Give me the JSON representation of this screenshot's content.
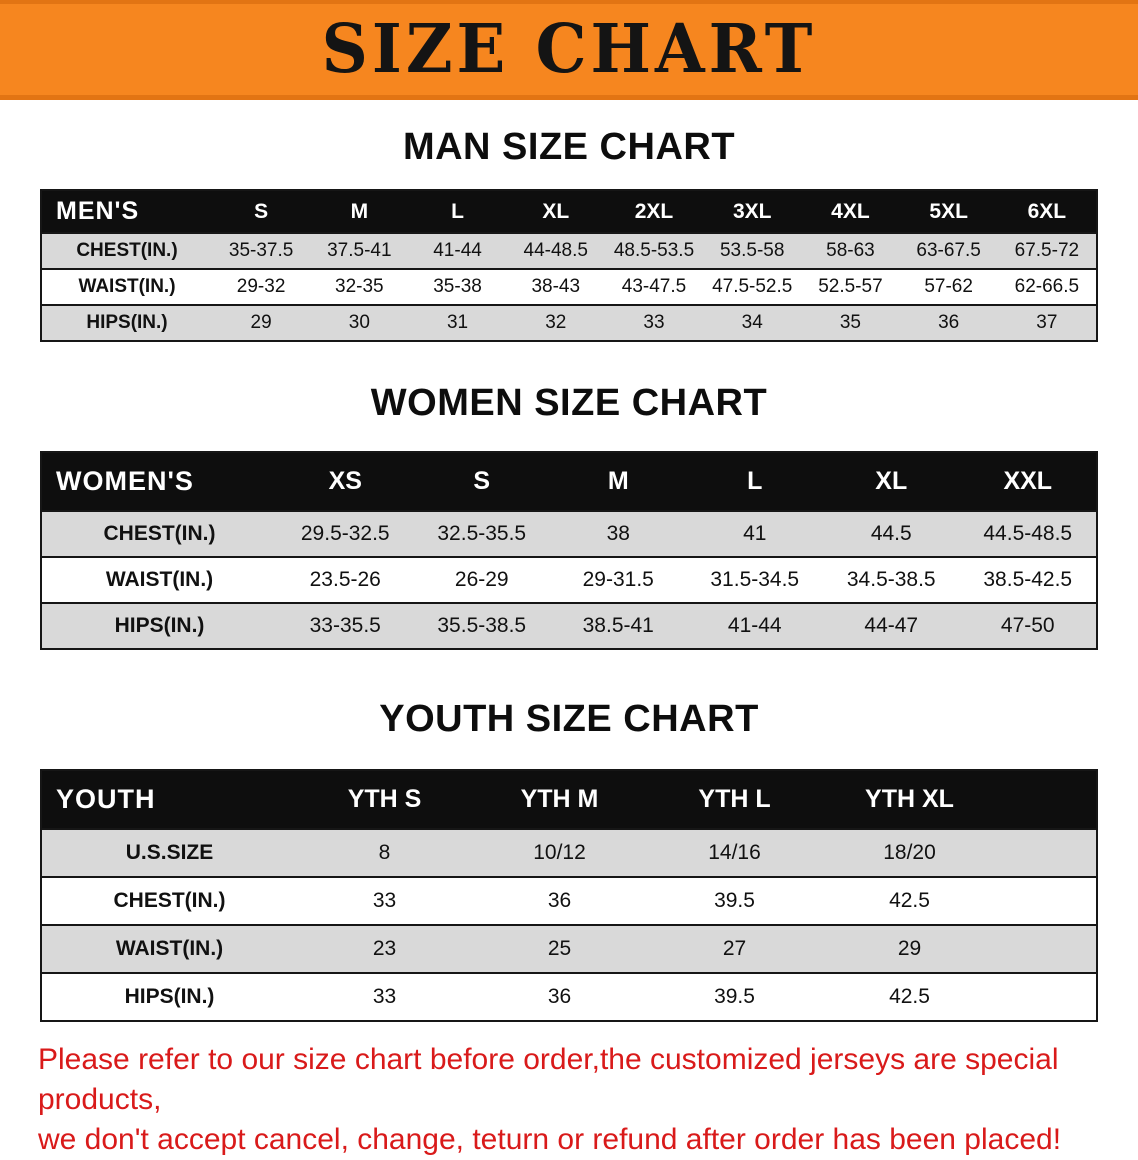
{
  "banner": {
    "title": "SIZE CHART",
    "bg_color": "#f6861f",
    "text_color": "#141414"
  },
  "colors": {
    "stripe_gray": "#d9d9d9",
    "header_black": "#0e0e0e",
    "footer_red": "#d91a1a"
  },
  "sections": [
    {
      "heading": "MAN SIZE CHART",
      "table": {
        "header": [
          "MEN'S",
          "S",
          "M",
          "L",
          "XL",
          "2XL",
          "3XL",
          "4XL",
          "5XL",
          "6XL"
        ],
        "rows": [
          {
            "label": "CHEST(IN.)",
            "values": [
              "35-37.5",
              "37.5-41",
              "41-44",
              "44-48.5",
              "48.5-53.5",
              "53.5-58",
              "58-63",
              "63-67.5",
              "67.5-72"
            ]
          },
          {
            "label": "WAIST(IN.)",
            "values": [
              "29-32",
              "32-35",
              "35-38",
              "38-43",
              "43-47.5",
              "47.5-52.5",
              "52.5-57",
              "57-62",
              "62-66.5"
            ]
          },
          {
            "label": "HIPS(IN.)",
            "values": [
              "29",
              "30",
              "31",
              "32",
              "33",
              "34",
              "35",
              "36",
              "37"
            ]
          }
        ]
      }
    },
    {
      "heading": "WOMEN SIZE CHART",
      "table": {
        "header": [
          "WOMEN'S",
          "XS",
          "S",
          "M",
          "L",
          "XL",
          "XXL"
        ],
        "rows": [
          {
            "label": "CHEST(IN.)",
            "values": [
              "29.5-32.5",
              "32.5-35.5",
              "38",
              "41",
              "44.5",
              "44.5-48.5"
            ]
          },
          {
            "label": "WAIST(IN.)",
            "values": [
              "23.5-26",
              "26-29",
              "29-31.5",
              "31.5-34.5",
              "34.5-38.5",
              "38.5-42.5"
            ]
          },
          {
            "label": "HIPS(IN.)",
            "values": [
              "33-35.5",
              "35.5-38.5",
              "38.5-41",
              "41-44",
              "44-47",
              "47-50"
            ]
          }
        ]
      }
    },
    {
      "heading": "YOUTH SIZE CHART",
      "table": {
        "header": [
          "YOUTH",
          "YTH S",
          "YTH M",
          "YTH L",
          "YTH XL"
        ],
        "rows": [
          {
            "label": "U.S.SIZE",
            "values": [
              "8",
              "10/12",
              "14/16",
              "18/20"
            ]
          },
          {
            "label": "CHEST(IN.)",
            "values": [
              "33",
              "36",
              "39.5",
              "42.5"
            ]
          },
          {
            "label": "WAIST(IN.)",
            "values": [
              "23",
              "25",
              "27",
              "29"
            ]
          },
          {
            "label": "HIPS(IN.)",
            "values": [
              "33",
              "36",
              "39.5",
              "42.5"
            ]
          }
        ]
      }
    }
  ],
  "footer": {
    "line1": "Please refer to our size chart before order,the customized jerseys are special products,",
    "line2": "we don't accept cancel, change, teturn or refund after order has been placed!"
  }
}
